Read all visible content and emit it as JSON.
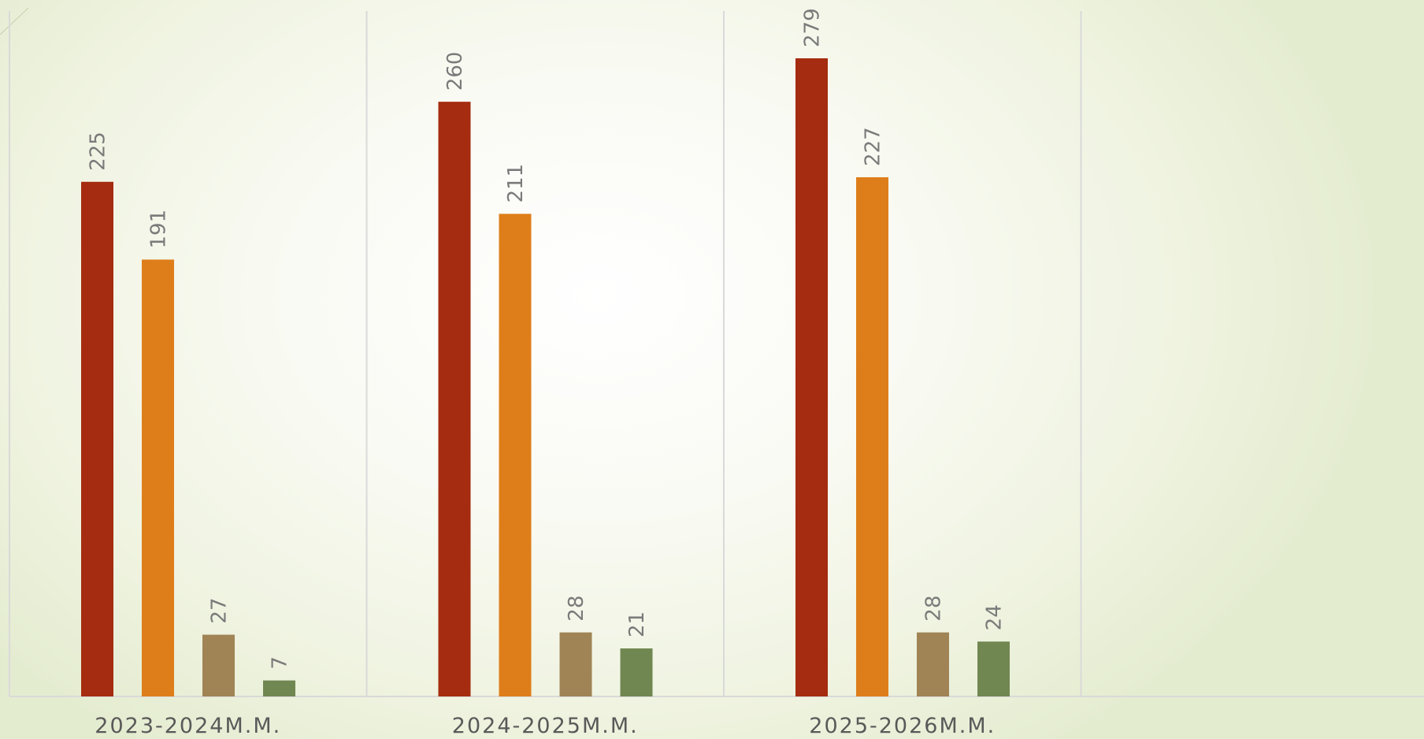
{
  "colors": {
    "background": "#f7f9ee",
    "gridline": "#d9d9d9",
    "axis": "#d9d9d9",
    "label": "#7a7a7a",
    "category_label": "#595959"
  },
  "chart_data": {
    "type": "bar",
    "categories": [
      "2023-2024м.м.",
      "2024-2025м.м.",
      "2025-2026м.м."
    ],
    "series": [
      {
        "color": "#a52c10",
        "values": [
          225,
          260,
          279
        ]
      },
      {
        "color": "#de7e1a",
        "values": [
          191,
          211,
          227
        ]
      },
      {
        "color": "#a08455",
        "values": [
          27,
          28,
          28
        ]
      },
      {
        "color": "#718752",
        "values": [
          7,
          21,
          24
        ]
      }
    ],
    "data_labels": true,
    "data_label_orientation": "vertical",
    "vertical_gridlines": true,
    "category_slots": 4,
    "legend": "none"
  }
}
